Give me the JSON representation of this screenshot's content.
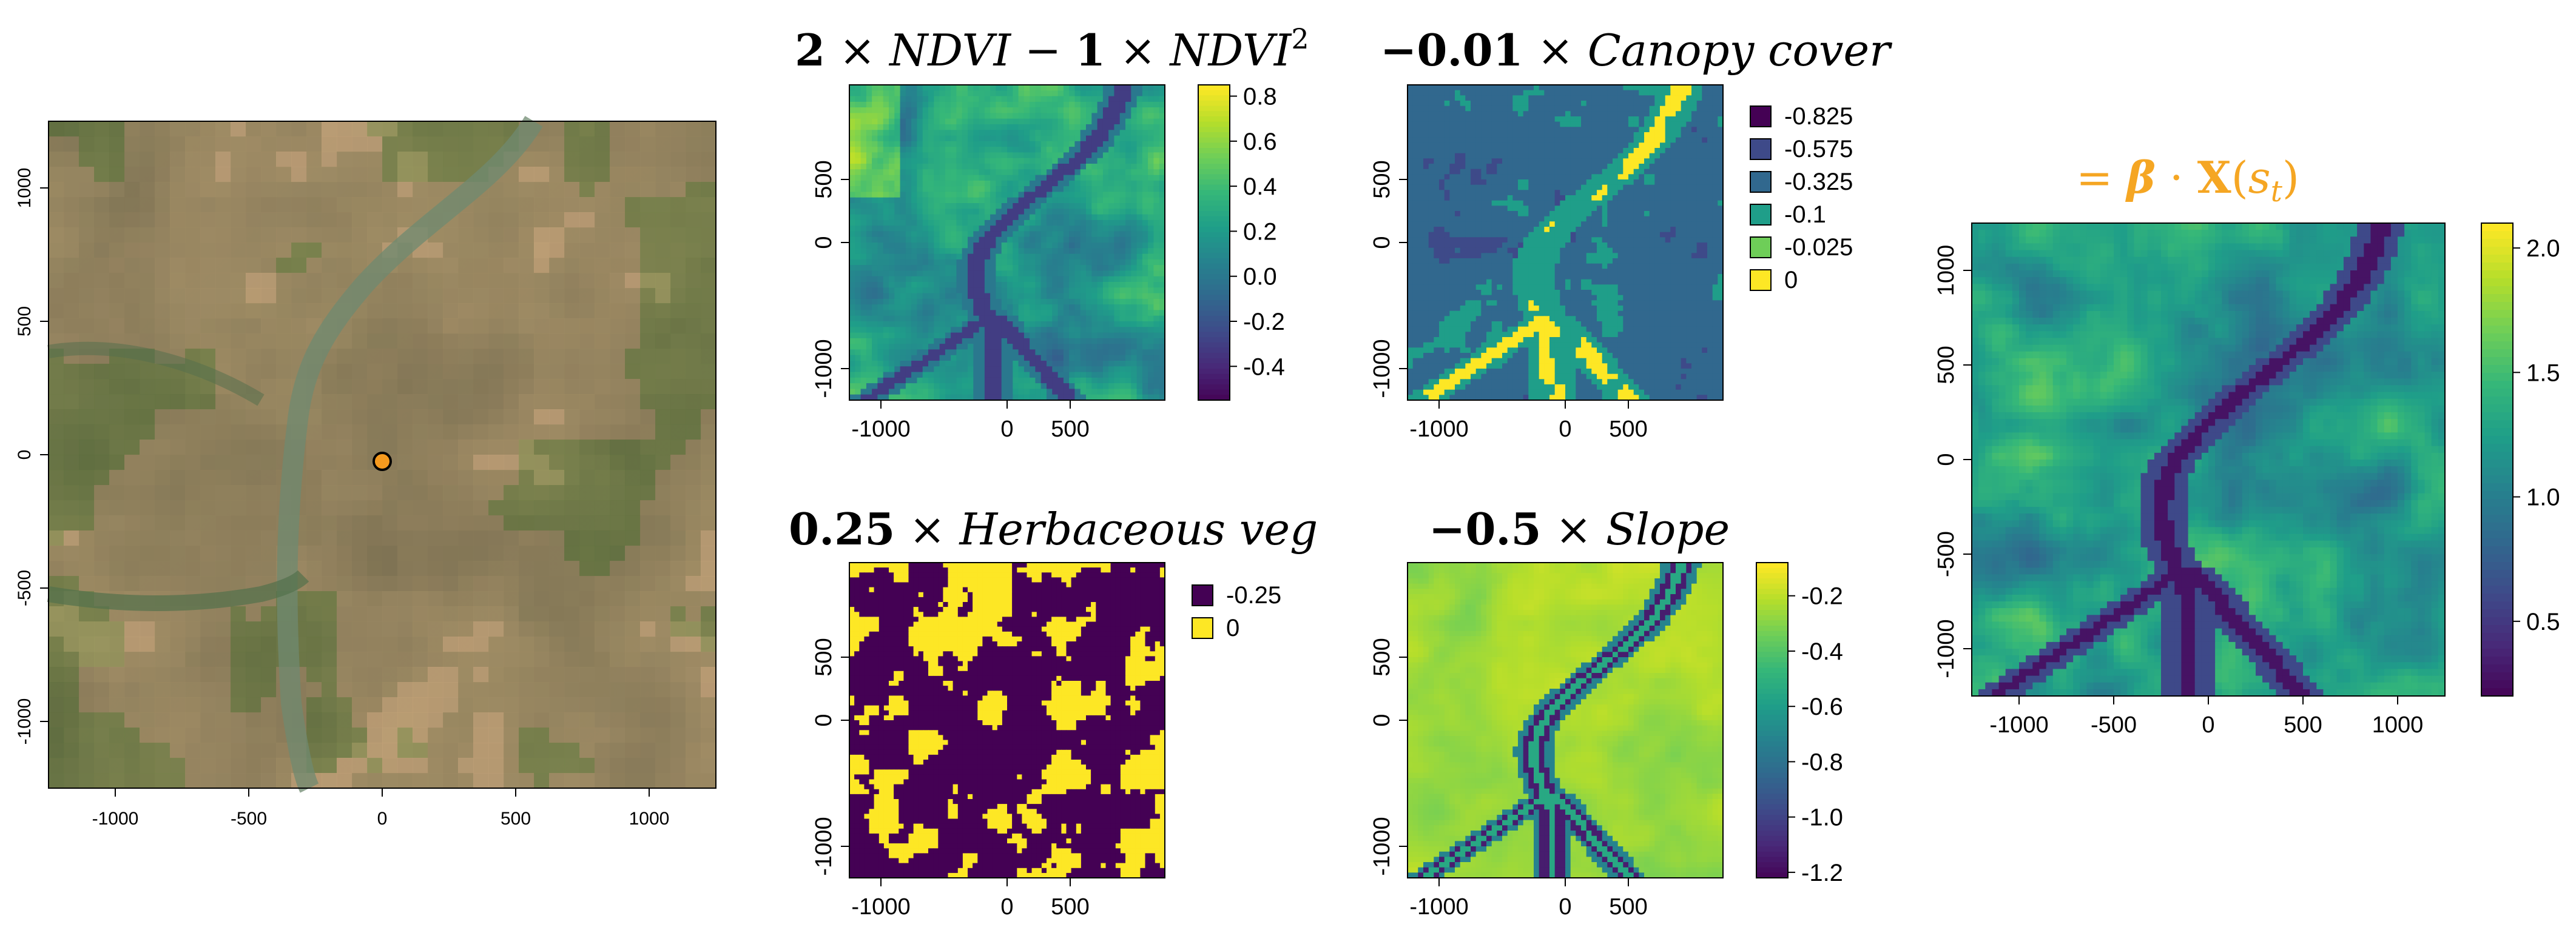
{
  "colors": {
    "viridis": [
      "#440154",
      "#482878",
      "#3e4a89",
      "#31688e",
      "#26828e",
      "#1f9e89",
      "#35b779",
      "#6ece58",
      "#b5de2b",
      "#fde725"
    ],
    "location_marker_fill": "#f59a1e",
    "result_title_color": "#f5a623"
  },
  "chart_data": [
    {
      "type": "heatmap",
      "panel": "satellite-image",
      "title": "",
      "xticks": [
        "-1000",
        "-500",
        "0",
        "500",
        "1000"
      ],
      "yticks": [
        "1000",
        "500",
        "0",
        "-500",
        "-1000"
      ],
      "xlim": [
        -1250,
        1250
      ],
      "ylim": [
        -1250,
        1250
      ],
      "marker": {
        "x": 0,
        "y": -25
      }
    },
    {
      "type": "heatmap",
      "panel": "ndvi",
      "title": {
        "coef1": "2",
        "sym1": " × ",
        "var1": "NDVI",
        "op": " − ",
        "coef2": "1",
        "sym2": " × ",
        "var2": "NDVI",
        "sup": "2"
      },
      "xticks": [
        "-1000",
        "0",
        "500"
      ],
      "yticks": [
        "500",
        "0",
        "-1000"
      ],
      "legend": {
        "kind": "continuous",
        "labels": [
          "0.8",
          "0.6",
          "0.4",
          "0.2",
          "0.0",
          "-0.2",
          "-0.4"
        ],
        "range": [
          -0.55,
          0.85
        ]
      }
    },
    {
      "type": "heatmap",
      "panel": "canopy",
      "title": {
        "coef": "−0.01",
        "sym": " × ",
        "var": "Canopy cover"
      },
      "xticks": [
        "-1000",
        "0",
        "500"
      ],
      "yticks": [
        "500",
        "0",
        "-1000"
      ],
      "legend": {
        "kind": "discrete",
        "labels": [
          "-0.825",
          "-0.575",
          "-0.325",
          "-0.1",
          "-0.025",
          "0"
        ],
        "colors": [
          "#440154",
          "#3e4a89",
          "#31688e",
          "#1f9e89",
          "#6ece58",
          "#fde725"
        ]
      }
    },
    {
      "type": "heatmap",
      "panel": "herbaceous",
      "title": {
        "coef": "0.25",
        "sym": " × ",
        "var": "Herbaceous veg"
      },
      "xticks": [
        "-1000",
        "0",
        "500"
      ],
      "yticks": [
        "500",
        "0",
        "-1000"
      ],
      "legend": {
        "kind": "discrete",
        "labels": [
          "-0.25",
          "0"
        ],
        "colors": [
          "#440154",
          "#fde725"
        ]
      }
    },
    {
      "type": "heatmap",
      "panel": "slope",
      "title": {
        "coef": "−0.5",
        "sym": " × ",
        "var": "Slope"
      },
      "xticks": [
        "-1000",
        "0",
        "500"
      ],
      "yticks": [
        "500",
        "0",
        "-1000"
      ],
      "legend": {
        "kind": "continuous",
        "labels": [
          "-0.2",
          "-0.4",
          "-0.6",
          "-0.8",
          "-1.0",
          "-1.2"
        ],
        "range": [
          -1.22,
          -0.08
        ]
      }
    },
    {
      "type": "heatmap",
      "panel": "result",
      "title": {
        "eq": "= ",
        "beta": "β",
        "dot": " · ",
        "X": "X",
        "paren_open": "(",
        "s": "s",
        "sub": "t",
        "paren_close": ")"
      },
      "xticks": [
        "-1000",
        "-500",
        "0",
        "500",
        "1000"
      ],
      "yticks": [
        "1000",
        "500",
        "0",
        "-500",
        "-1000"
      ],
      "legend": {
        "kind": "continuous",
        "labels": [
          "2.0",
          "1.5",
          "1.0",
          "0.5"
        ],
        "range": [
          0.2,
          2.1
        ]
      }
    }
  ]
}
